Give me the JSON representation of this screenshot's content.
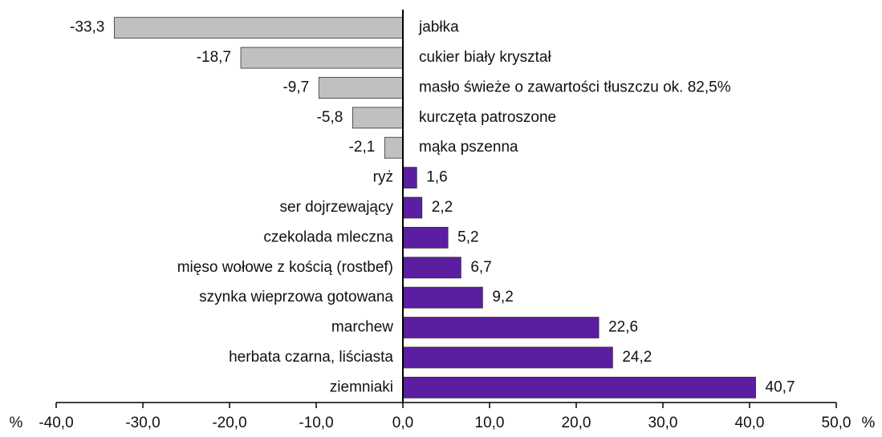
{
  "chart_data": {
    "type": "hbar",
    "categories": [
      "jabłka",
      "cukier biały kryształ",
      "masło świeże o zawartości tłuszczu ok. 82,5%",
      "kurczęta patroszone",
      "mąka pszenna",
      "ryż",
      "ser dojrzewający",
      "czekolada mleczna",
      "mięso wołowe z kością (rostbef)",
      "szynka wieprzowa gotowana",
      "marchew",
      "herbata czarna, liściasta",
      "ziemniaki"
    ],
    "values": [
      -33.3,
      -18.7,
      -9.7,
      -5.8,
      -2.1,
      1.6,
      2.2,
      5.2,
      6.7,
      9.2,
      22.6,
      24.2,
      40.7
    ],
    "value_labels": [
      "-33,3",
      "-18,7",
      "-9,7",
      "-5,8",
      "-2,1",
      "1,6",
      "2,2",
      "5,2",
      "6,7",
      "9,2",
      "22,6",
      "24,2",
      "40,7"
    ],
    "negative_color": "#c0c0c0",
    "positive_color": "#5c1ea0",
    "x_unit": "%",
    "xlim": [
      -40,
      50
    ],
    "xticks": [
      {
        "value": -40,
        "label": "-40,0"
      },
      {
        "value": -30,
        "label": "-30,0"
      },
      {
        "value": -20,
        "label": "-20,0"
      },
      {
        "value": -10,
        "label": "-10,0"
      },
      {
        "value": 0,
        "label": "0,0"
      },
      {
        "value": 10,
        "label": "10,0"
      },
      {
        "value": 20,
        "label": "20,0"
      },
      {
        "value": 30,
        "label": "30,0"
      },
      {
        "value": 40,
        "label": "40,0"
      },
      {
        "value": 50,
        "label": "50,0"
      }
    ],
    "grid": false
  }
}
